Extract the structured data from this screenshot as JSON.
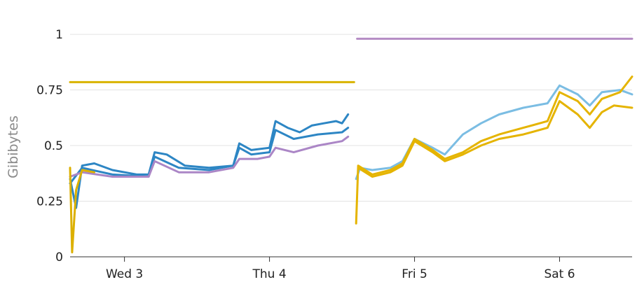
{
  "chart_data": {
    "type": "line",
    "title": "",
    "xlabel": "",
    "ylabel": "Gibibytes",
    "ylim": [
      0,
      1.06
    ],
    "xlim": [
      "2021-03-02T15:00",
      "2021-03-06T12:00"
    ],
    "yticks": [
      {
        "value": 0,
        "label": "0"
      },
      {
        "value": 0.25,
        "label": "0.25"
      },
      {
        "value": 0.5,
        "label": "0.5"
      },
      {
        "value": 0.75,
        "label": "0.75"
      },
      {
        "value": 1,
        "label": "1"
      }
    ],
    "xticks": [
      {
        "value": "2021-03-03T00:00",
        "label": "Wed 3"
      },
      {
        "value": "2021-03-04T00:00",
        "label": "Thu 4"
      },
      {
        "value": "2021-03-05T00:00",
        "label": "Fri 5"
      },
      {
        "value": "2021-03-06T00:00",
        "label": "Sat 6"
      }
    ],
    "grid": true,
    "legend": "none",
    "series": [
      {
        "color": "#d9b300",
        "points": [
          [
            "2021-03-02T15:00",
            0.785
          ],
          [
            "2021-03-04T14:00",
            0.785
          ]
        ]
      },
      {
        "color": "#b58cc4",
        "points": [
          [
            "2021-03-04T14:30",
            0.98
          ],
          [
            "2021-03-06T12:00",
            0.98
          ]
        ]
      },
      {
        "color": "#2d86c4",
        "points": [
          [
            "2021-03-02T15:00",
            0.35
          ],
          [
            "2021-03-02T16:00",
            0.22
          ],
          [
            "2021-03-02T17:00",
            0.41
          ],
          [
            "2021-03-02T19:00",
            0.42
          ],
          [
            "2021-03-02T22:00",
            0.39
          ],
          [
            "2021-03-03T02:00",
            0.37
          ],
          [
            "2021-03-03T04:00",
            0.37
          ],
          [
            "2021-03-03T05:00",
            0.47
          ],
          [
            "2021-03-03T07:00",
            0.46
          ],
          [
            "2021-03-03T10:00",
            0.41
          ],
          [
            "2021-03-03T14:00",
            0.4
          ],
          [
            "2021-03-03T18:00",
            0.41
          ],
          [
            "2021-03-03T19:00",
            0.51
          ],
          [
            "2021-03-03T21:00",
            0.48
          ],
          [
            "2021-03-04T00:00",
            0.49
          ],
          [
            "2021-03-04T01:00",
            0.61
          ],
          [
            "2021-03-04T03:00",
            0.58
          ],
          [
            "2021-03-04T05:00",
            0.56
          ],
          [
            "2021-03-04T07:00",
            0.59
          ],
          [
            "2021-03-04T09:00",
            0.6
          ],
          [
            "2021-03-04T11:00",
            0.61
          ],
          [
            "2021-03-04T12:00",
            0.6
          ],
          [
            "2021-03-04T13:00",
            0.64
          ]
        ]
      },
      {
        "color": "#2d86c4",
        "points": [
          [
            "2021-03-02T15:00",
            0.33
          ],
          [
            "2021-03-02T17:00",
            0.4
          ],
          [
            "2021-03-02T22:00",
            0.37
          ],
          [
            "2021-03-03T04:00",
            0.36
          ],
          [
            "2021-03-03T05:00",
            0.45
          ],
          [
            "2021-03-03T09:00",
            0.4
          ],
          [
            "2021-03-03T14:00",
            0.39
          ],
          [
            "2021-03-03T18:00",
            0.41
          ],
          [
            "2021-03-03T19:00",
            0.49
          ],
          [
            "2021-03-03T21:00",
            0.46
          ],
          [
            "2021-03-04T00:00",
            0.47
          ],
          [
            "2021-03-04T01:00",
            0.57
          ],
          [
            "2021-03-04T04:00",
            0.53
          ],
          [
            "2021-03-04T08:00",
            0.55
          ],
          [
            "2021-03-04T12:00",
            0.56
          ],
          [
            "2021-03-04T13:00",
            0.58
          ]
        ]
      },
      {
        "color": "#ab86c6",
        "points": [
          [
            "2021-03-02T15:00",
            0.36
          ],
          [
            "2021-03-02T17:00",
            0.38
          ],
          [
            "2021-03-02T22:00",
            0.36
          ],
          [
            "2021-03-03T04:00",
            0.36
          ],
          [
            "2021-03-03T05:00",
            0.43
          ],
          [
            "2021-03-03T09:00",
            0.38
          ],
          [
            "2021-03-03T14:00",
            0.38
          ],
          [
            "2021-03-03T18:00",
            0.4
          ],
          [
            "2021-03-03T19:00",
            0.44
          ],
          [
            "2021-03-03T22:00",
            0.44
          ],
          [
            "2021-03-04T00:00",
            0.45
          ],
          [
            "2021-03-04T01:00",
            0.49
          ],
          [
            "2021-03-04T04:00",
            0.47
          ],
          [
            "2021-03-04T08:00",
            0.5
          ],
          [
            "2021-03-04T12:00",
            0.52
          ],
          [
            "2021-03-04T13:00",
            0.54
          ]
        ]
      },
      {
        "color": "#dcb000",
        "points": [
          [
            "2021-03-02T15:00",
            0.4
          ],
          [
            "2021-03-02T15:20",
            0.02
          ],
          [
            "2021-03-02T16:00",
            0.3
          ],
          [
            "2021-03-02T17:00",
            0.39
          ],
          [
            "2021-03-02T19:00",
            0.38
          ]
        ]
      },
      {
        "color": "#7bbde3",
        "points": [
          [
            "2021-03-04T14:20",
            0.35
          ],
          [
            "2021-03-04T15:00",
            0.4
          ],
          [
            "2021-03-04T17:00",
            0.39
          ],
          [
            "2021-03-04T20:00",
            0.4
          ],
          [
            "2021-03-04T22:00",
            0.43
          ],
          [
            "2021-03-05T00:00",
            0.53
          ],
          [
            "2021-03-05T03:00",
            0.49
          ],
          [
            "2021-03-05T05:00",
            0.46
          ],
          [
            "2021-03-05T08:00",
            0.55
          ],
          [
            "2021-03-05T11:00",
            0.6
          ],
          [
            "2021-03-05T14:00",
            0.64
          ],
          [
            "2021-03-05T18:00",
            0.67
          ],
          [
            "2021-03-05T22:00",
            0.69
          ],
          [
            "2021-03-06T00:00",
            0.77
          ],
          [
            "2021-03-06T03:00",
            0.73
          ],
          [
            "2021-03-06T05:00",
            0.68
          ],
          [
            "2021-03-06T07:00",
            0.74
          ],
          [
            "2021-03-06T10:00",
            0.75
          ],
          [
            "2021-03-06T12:00",
            0.73
          ]
        ]
      },
      {
        "color": "#e5b400",
        "points": [
          [
            "2021-03-04T14:20",
            0.15
          ],
          [
            "2021-03-04T14:40",
            0.41
          ],
          [
            "2021-03-04T17:00",
            0.37
          ],
          [
            "2021-03-04T20:00",
            0.39
          ],
          [
            "2021-03-04T22:00",
            0.42
          ],
          [
            "2021-03-05T00:00",
            0.53
          ],
          [
            "2021-03-05T03:00",
            0.48
          ],
          [
            "2021-03-05T05:00",
            0.44
          ],
          [
            "2021-03-05T08:00",
            0.47
          ],
          [
            "2021-03-05T11:00",
            0.52
          ],
          [
            "2021-03-05T14:00",
            0.55
          ],
          [
            "2021-03-05T18:00",
            0.58
          ],
          [
            "2021-03-05T22:00",
            0.61
          ],
          [
            "2021-03-06T00:00",
            0.74
          ],
          [
            "2021-03-06T03:00",
            0.7
          ],
          [
            "2021-03-06T05:00",
            0.64
          ],
          [
            "2021-03-06T07:00",
            0.71
          ],
          [
            "2021-03-06T10:00",
            0.74
          ],
          [
            "2021-03-06T12:00",
            0.81
          ]
        ]
      },
      {
        "color": "#e5b400",
        "points": [
          [
            "2021-03-04T14:40",
            0.4
          ],
          [
            "2021-03-04T17:00",
            0.36
          ],
          [
            "2021-03-04T20:00",
            0.38
          ],
          [
            "2021-03-04T22:00",
            0.41
          ],
          [
            "2021-03-05T00:00",
            0.52
          ],
          [
            "2021-03-05T03:00",
            0.47
          ],
          [
            "2021-03-05T05:00",
            0.43
          ],
          [
            "2021-03-05T08:00",
            0.46
          ],
          [
            "2021-03-05T11:00",
            0.5
          ],
          [
            "2021-03-05T14:00",
            0.53
          ],
          [
            "2021-03-05T18:00",
            0.55
          ],
          [
            "2021-03-05T22:00",
            0.58
          ],
          [
            "2021-03-06T00:00",
            0.7
          ],
          [
            "2021-03-06T03:00",
            0.64
          ],
          [
            "2021-03-06T05:00",
            0.58
          ],
          [
            "2021-03-06T07:00",
            0.65
          ],
          [
            "2021-03-06T09:00",
            0.68
          ],
          [
            "2021-03-06T12:00",
            0.67
          ]
        ]
      }
    ]
  }
}
